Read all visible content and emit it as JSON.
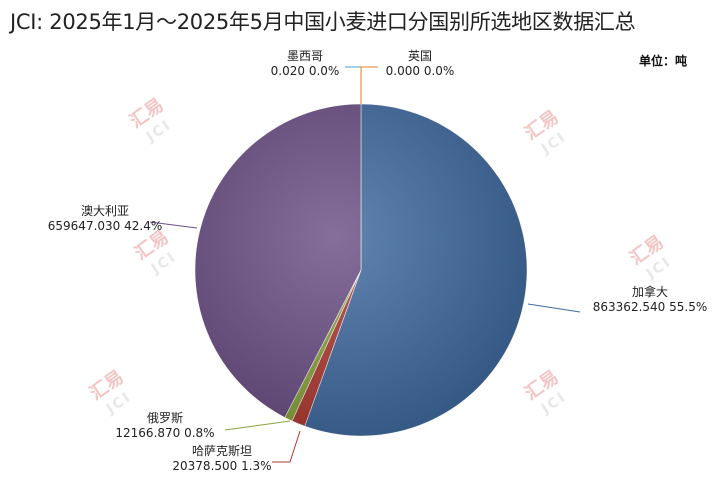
{
  "title": "JCI: 2025年1月～2025年5月中国小麦进口分国别所选地区数据汇总",
  "unit_label": "单位：吨",
  "watermark": {
    "text_cn": "汇易",
    "text_en": "JCI"
  },
  "colors": {
    "canada": "#3f6aa0",
    "kazakhstan": "#b03a32",
    "russia": "#8aa33c",
    "australia": "#6c4f86",
    "mexico": "#4aa0c8",
    "uk": "#d9822b"
  },
  "chart_data": {
    "type": "pie",
    "title": "JCI: 2025年1月～2025年5月中国小麦进口分国别所选地区数据汇总",
    "unit": "单位：吨",
    "slices": [
      {
        "name": "加拿大",
        "value": 863362.54,
        "value_text": "863362.540",
        "percent_text": "55.5%",
        "color": "#3f6aa0"
      },
      {
        "name": "哈萨克斯坦",
        "value": 20378.5,
        "value_text": "20378.500",
        "percent_text": "1.3%",
        "color": "#b03a32"
      },
      {
        "name": "俄罗斯",
        "value": 12166.87,
        "value_text": "12166.870",
        "percent_text": "0.8%",
        "color": "#8aa33c"
      },
      {
        "name": "澳大利亚",
        "value": 659647.03,
        "value_text": "659647.030",
        "percent_text": "42.4%",
        "color": "#6c4f86"
      },
      {
        "name": "墨西哥",
        "value": 0.02,
        "value_text": "0.020",
        "percent_text": "0.0%",
        "color": "#4aa0c8"
      },
      {
        "name": "英国",
        "value": 0.0,
        "value_text": "0.000",
        "percent_text": "0.0%",
        "color": "#d9822b"
      }
    ]
  }
}
